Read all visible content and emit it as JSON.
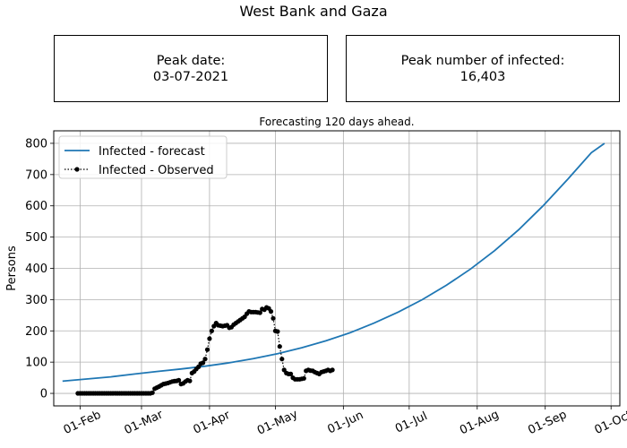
{
  "figure": {
    "title": "West Bank and Gaza"
  },
  "info_boxes": {
    "peak_date_label": "Peak date:",
    "peak_date_value": "03-07-2021",
    "peak_infected_label": "Peak number of infected:",
    "peak_infected_value": "16,403"
  },
  "colors": {
    "forecast": "#1f77b4",
    "observed": "#000000",
    "grid": "#b0b0b0"
  },
  "chart_data": {
    "type": "line",
    "title": "Forecasting 120 days ahead.",
    "xlabel": "",
    "ylabel": "Persons",
    "x_start": "2021-01-20",
    "x_end": "2021-10-05",
    "xlim": [
      "2021-01-20",
      "2021-10-05"
    ],
    "ylim": [
      -40,
      840
    ],
    "yticks": [
      0,
      100,
      200,
      300,
      400,
      500,
      600,
      700,
      800
    ],
    "xticks": [
      {
        "date": "2021-02-01",
        "label": "01-Feb"
      },
      {
        "date": "2021-03-01",
        "label": "01-Mar"
      },
      {
        "date": "2021-04-01",
        "label": "01-Apr"
      },
      {
        "date": "2021-05-01",
        "label": "01-May"
      },
      {
        "date": "2021-06-01",
        "label": "01-Jun"
      },
      {
        "date": "2021-07-01",
        "label": "01-Jul"
      },
      {
        "date": "2021-08-01",
        "label": "01-Aug"
      },
      {
        "date": "2021-09-01",
        "label": "01-Sep"
      },
      {
        "date": "2021-10-01",
        "label": "01-Oct"
      }
    ],
    "grid": true,
    "legend_position": "top-left",
    "series": [
      {
        "name": "Infected - forecast",
        "style": "solid",
        "x": [
          "2021-01-24",
          "2021-02-04",
          "2021-02-15",
          "2021-02-26",
          "2021-03-08",
          "2021-03-19",
          "2021-03-30",
          "2021-04-10",
          "2021-04-21",
          "2021-05-02",
          "2021-05-13",
          "2021-05-24",
          "2021-06-04",
          "2021-06-15",
          "2021-06-26",
          "2021-07-07",
          "2021-07-18",
          "2021-07-29",
          "2021-08-09",
          "2021-08-20",
          "2021-08-31",
          "2021-09-11",
          "2021-09-22",
          "2021-09-28"
        ],
        "y": [
          39,
          46,
          53,
          62,
          70,
          78,
          87,
          98,
          111,
          127,
          146,
          168,
          194,
          225,
          260,
          300,
          346,
          398,
          457,
          524,
          600,
          683,
          770,
          800
        ]
      },
      {
        "name": "Infected - Observed",
        "style": "dotted-markers",
        "x": [
          "2021-01-31",
          "2021-02-05",
          "2021-02-10",
          "2021-02-15",
          "2021-02-20",
          "2021-02-25",
          "2021-03-01",
          "2021-03-04",
          "2021-03-05",
          "2021-03-06",
          "2021-03-07",
          "2021-03-09",
          "2021-03-11",
          "2021-03-13",
          "2021-03-15",
          "2021-03-17",
          "2021-03-18",
          "2021-03-19",
          "2021-03-20",
          "2021-03-21",
          "2021-03-22",
          "2021-03-23",
          "2021-03-24",
          "2021-03-25",
          "2021-03-26",
          "2021-03-27",
          "2021-03-28",
          "2021-03-29",
          "2021-03-30",
          "2021-03-31",
          "2021-04-01",
          "2021-04-02",
          "2021-04-03",
          "2021-04-04",
          "2021-04-05",
          "2021-04-07",
          "2021-04-09",
          "2021-04-10",
          "2021-04-11",
          "2021-04-12",
          "2021-04-13",
          "2021-04-15",
          "2021-04-17",
          "2021-04-18",
          "2021-04-19",
          "2021-04-20",
          "2021-04-22",
          "2021-04-24",
          "2021-04-25",
          "2021-04-26",
          "2021-04-27",
          "2021-04-28",
          "2021-04-29",
          "2021-04-30",
          "2021-05-01",
          "2021-05-02",
          "2021-05-03",
          "2021-05-04",
          "2021-05-05",
          "2021-05-06",
          "2021-05-07",
          "2021-05-08",
          "2021-05-09",
          "2021-05-10",
          "2021-05-12",
          "2021-05-14",
          "2021-05-15",
          "2021-05-16",
          "2021-05-17",
          "2021-05-18",
          "2021-05-19",
          "2021-05-20",
          "2021-05-21",
          "2021-05-22",
          "2021-05-23",
          "2021-05-24",
          "2021-05-25",
          "2021-05-26",
          "2021-05-27"
        ],
        "y": [
          0,
          0,
          0,
          0,
          0,
          0,
          0,
          0,
          0,
          2,
          15,
          22,
          30,
          33,
          38,
          40,
          42,
          30,
          32,
          38,
          42,
          40,
          65,
          70,
          78,
          85,
          95,
          98,
          110,
          140,
          175,
          200,
          215,
          225,
          218,
          215,
          218,
          210,
          212,
          220,
          225,
          235,
          245,
          255,
          262,
          260,
          260,
          258,
          270,
          268,
          275,
          272,
          262,
          240,
          200,
          198,
          150,
          110,
          75,
          65,
          62,
          62,
          50,
          45,
          45,
          48,
          72,
          75,
          73,
          72,
          68,
          65,
          62,
          68,
          70,
          72,
          75,
          72,
          75
        ]
      }
    ]
  }
}
